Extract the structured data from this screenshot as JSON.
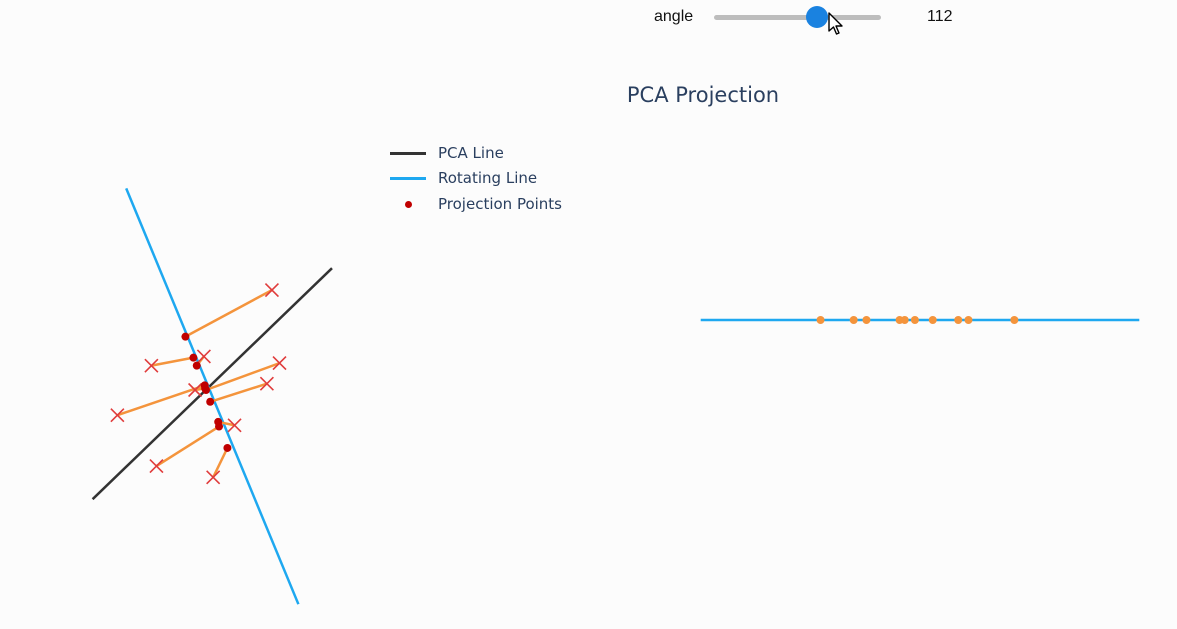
{
  "slider": {
    "label": "angle",
    "value": "112",
    "min": 0,
    "max": 180,
    "position_value": 112
  },
  "title": "PCA Projection",
  "legend": [
    {
      "label": "PCA Line",
      "type": "line",
      "color": "#333333"
    },
    {
      "label": "Rotating Line",
      "type": "line",
      "color": "#1ea8f0"
    },
    {
      "label": "Projection Points",
      "type": "dot",
      "color": "#c00000"
    }
  ],
  "colors": {
    "pca_line": "#333333",
    "rotating_line": "#1ea8f0",
    "projection_point": "#c00000",
    "data_marker": "#e03c3c",
    "connector": "#f4943c",
    "projected_1d": "#f4943c"
  },
  "chart_data": [
    {
      "type": "scatter",
      "title": "",
      "angle_deg": 112,
      "pca_line": {
        "from": [
          -2.7,
          -2.6
        ],
        "to": [
          3.0,
          2.9
        ]
      },
      "rotating_line": {
        "from": [
          -1.9,
          4.8
        ],
        "to": [
          2.2,
          -5.1
        ]
      },
      "data_points": [
        {
          "x": 1.57,
          "y": 2.38
        },
        {
          "x": -1.3,
          "y": 0.58
        },
        {
          "x": -0.05,
          "y": 0.8
        },
        {
          "x": -2.11,
          "y": -0.6
        },
        {
          "x": -0.26,
          "y": 0.0
        },
        {
          "x": 1.75,
          "y": 0.64
        },
        {
          "x": 1.45,
          "y": 0.15
        },
        {
          "x": 0.68,
          "y": -0.84
        },
        {
          "x": -1.18,
          "y": -1.81
        },
        {
          "x": 0.17,
          "y": -2.08
        }
      ],
      "projections": [
        {
          "x": -0.49,
          "y": 1.27
        },
        {
          "x": -0.3,
          "y": 0.77
        },
        {
          "x": -0.22,
          "y": 0.58
        },
        {
          "x": -0.03,
          "y": 0.11
        },
        {
          "x": -0.02,
          "y": 0.04
        },
        {
          "x": 0.0,
          "y": 0.0
        },
        {
          "x": 0.1,
          "y": -0.28
        },
        {
          "x": 0.29,
          "y": -0.76
        },
        {
          "x": 0.31,
          "y": -0.87
        },
        {
          "x": 0.51,
          "y": -1.38
        }
      ]
    },
    {
      "type": "scatter",
      "title": "",
      "line_range": [
        -4.3,
        4.3
      ],
      "projected_values": [
        -1.95,
        -1.3,
        -1.05,
        -0.4,
        -0.3,
        -0.1,
        0.25,
        0.75,
        0.95,
        1.85
      ]
    }
  ]
}
